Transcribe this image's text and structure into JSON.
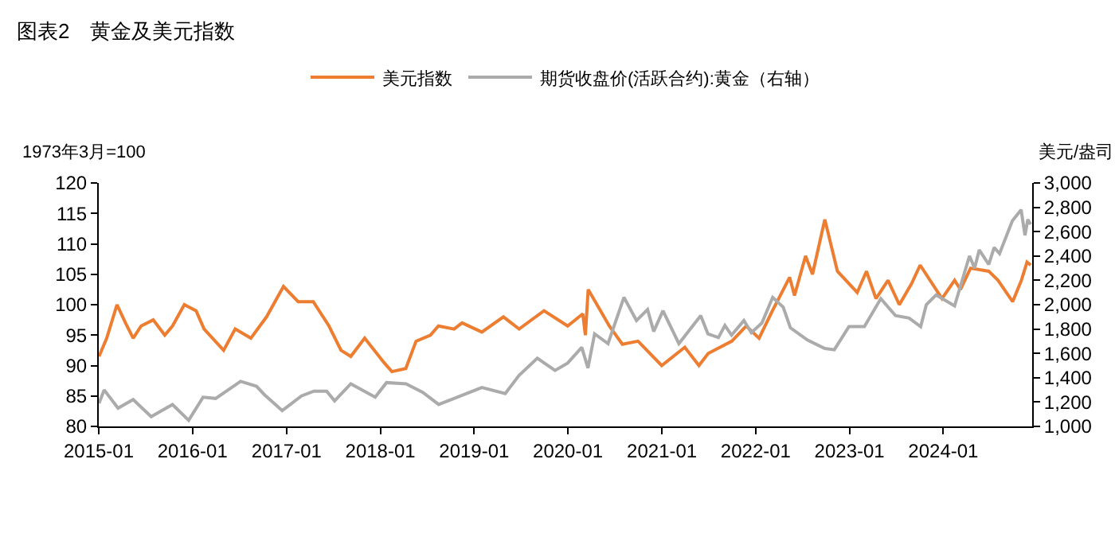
{
  "chart_data": {
    "type": "line",
    "title": "图表2　黄金及美元指数",
    "ylabel": "1973年3月=100",
    "y2label": "美元/盎司",
    "legend": "top",
    "marker": "none",
    "line_style": "solid",
    "xlim": [
      "2015-01-01",
      "2024-12-12"
    ],
    "xticks": [
      "2015-01",
      "2016-01",
      "2017-01",
      "2018-01",
      "2019-01",
      "2020-01",
      "2021-01",
      "2022-01",
      "2023-01",
      "2024-01"
    ],
    "ylim": [
      80,
      120
    ],
    "yticks": [
      80,
      85,
      90,
      95,
      100,
      105,
      110,
      115,
      120
    ],
    "y2lim": [
      1000,
      3000
    ],
    "y2ticks": [
      {
        "value": 1000,
        "label": "1,000"
      },
      {
        "value": 1200,
        "label": "1,200"
      },
      {
        "value": 1400,
        "label": "1,400"
      },
      {
        "value": 1600,
        "label": "1,600"
      },
      {
        "value": 1800,
        "label": "1,800"
      },
      {
        "value": 2000,
        "label": "2,000"
      },
      {
        "value": 2200,
        "label": "2,200"
      },
      {
        "value": 2400,
        "label": "2,400"
      },
      {
        "value": 2600,
        "label": "2,600"
      },
      {
        "value": 2800,
        "label": "2,800"
      },
      {
        "value": 3000,
        "label": "3,000"
      }
    ],
    "series": [
      {
        "name": "美元指数",
        "color": "#ed7d31",
        "x": [
          "2015-01-02",
          "2015-02-01",
          "2015-03-13",
          "2015-04-15",
          "2015-05-15",
          "2015-06-15",
          "2015-08-01",
          "2015-09-15",
          "2015-10-15",
          "2015-11-30",
          "2016-01-15",
          "2016-02-15",
          "2016-05-01",
          "2016-06-15",
          "2016-08-15",
          "2016-10-15",
          "2016-12-20",
          "2017-02-15",
          "2017-04-15",
          "2017-06-15",
          "2017-08-01",
          "2017-09-08",
          "2017-11-01",
          "2018-01-15",
          "2018-02-15",
          "2018-04-10",
          "2018-05-20",
          "2018-07-15",
          "2018-08-15",
          "2018-10-15",
          "2018-11-15",
          "2019-01-31",
          "2019-04-25",
          "2019-06-25",
          "2019-09-30",
          "2019-12-31",
          "2020-02-28",
          "2020-03-09",
          "2020-03-20",
          "2020-04-30",
          "2020-06-10",
          "2020-07-31",
          "2020-09-30",
          "2020-12-31",
          "2021-03-31",
          "2021-05-25",
          "2021-06-30",
          "2021-09-30",
          "2021-11-25",
          "2022-01-14",
          "2022-03-07",
          "2022-05-13",
          "2022-06-01",
          "2022-07-14",
          "2022-08-10",
          "2022-09-27",
          "2022-11-15",
          "2023-01-31",
          "2023-03-08",
          "2023-04-14",
          "2023-05-31",
          "2023-07-14",
          "2023-08-31",
          "2023-10-03",
          "2023-12-27",
          "2024-02-14",
          "2024-03-08",
          "2024-04-16",
          "2024-06-26",
          "2024-08-01",
          "2024-09-27",
          "2024-10-31",
          "2024-11-22",
          "2024-12-06"
        ],
        "values": [
          91.5,
          94.5,
          100.0,
          97.0,
          94.5,
          96.5,
          97.5,
          95.0,
          96.5,
          100.0,
          99.0,
          96.0,
          92.5,
          96.0,
          94.5,
          98.0,
          103.0,
          100.5,
          100.5,
          96.5,
          92.5,
          91.5,
          94.5,
          90.5,
          89.0,
          89.5,
          94.0,
          95.0,
          96.5,
          96.0,
          97.0,
          95.5,
          98.0,
          96.0,
          99.0,
          96.5,
          98.5,
          95.0,
          102.5,
          99.5,
          96.5,
          93.5,
          94.0,
          90.0,
          93.0,
          90.0,
          92.0,
          94.0,
          96.5,
          94.5,
          99.0,
          104.5,
          101.5,
          108.0,
          105.0,
          114.0,
          105.5,
          102.0,
          105.5,
          101.0,
          104.0,
          100.0,
          103.5,
          106.5,
          101.0,
          104.0,
          102.5,
          106.0,
          105.5,
          104.0,
          100.5,
          104.0,
          107.0,
          106.5
        ]
      },
      {
        "name": "期货收盘价(活跃合约):黄金（右轴）",
        "color": "#ababab",
        "axis": "y2",
        "x": [
          "2015-01-02",
          "2015-01-22",
          "2015-03-17",
          "2015-05-15",
          "2015-07-24",
          "2015-10-15",
          "2015-12-17",
          "2016-02-11",
          "2016-03-31",
          "2016-07-06",
          "2016-09-06",
          "2016-10-07",
          "2016-12-15",
          "2017-02-28",
          "2017-04-17",
          "2017-06-06",
          "2017-07-07",
          "2017-09-08",
          "2017-12-12",
          "2018-01-25",
          "2018-04-11",
          "2018-06-15",
          "2018-08-16",
          "2018-10-15",
          "2019-01-31",
          "2019-05-02",
          "2019-06-25",
          "2019-09-04",
          "2019-11-12",
          "2019-12-31",
          "2020-02-24",
          "2020-03-19",
          "2020-04-14",
          "2020-06-05",
          "2020-08-06",
          "2020-09-24",
          "2020-11-06",
          "2020-11-30",
          "2021-01-05",
          "2021-03-08",
          "2021-06-01",
          "2021-06-29",
          "2021-08-09",
          "2021-09-03",
          "2021-09-29",
          "2021-11-16",
          "2021-12-15",
          "2022-01-25",
          "2022-03-08",
          "2022-04-18",
          "2022-05-16",
          "2022-07-21",
          "2022-09-27",
          "2022-11-03",
          "2022-12-30",
          "2023-02-28",
          "2023-05-03",
          "2023-06-29",
          "2023-08-21",
          "2023-10-05",
          "2023-10-27",
          "2023-12-04",
          "2024-02-14",
          "2024-04-12",
          "2024-05-02",
          "2024-05-20",
          "2024-06-26",
          "2024-07-17",
          "2024-08-07",
          "2024-09-26",
          "2024-10-30",
          "2024-11-14",
          "2024-11-25",
          "2024-12-06"
        ],
        "values": [
          1190,
          1300,
          1150,
          1220,
          1080,
          1180,
          1050,
          1240,
          1230,
          1370,
          1330,
          1260,
          1130,
          1250,
          1290,
          1290,
          1210,
          1350,
          1240,
          1360,
          1350,
          1280,
          1180,
          1230,
          1320,
          1270,
          1420,
          1560,
          1460,
          1520,
          1650,
          1480,
          1760,
          1680,
          2060,
          1870,
          1960,
          1780,
          1950,
          1680,
          1910,
          1760,
          1730,
          1830,
          1750,
          1870,
          1770,
          1850,
          2060,
          1980,
          1810,
          1710,
          1640,
          1630,
          1820,
          1820,
          2050,
          1910,
          1890,
          1820,
          2000,
          2080,
          1990,
          2400,
          2300,
          2450,
          2330,
          2470,
          2420,
          2690,
          2780,
          2570,
          2700,
          2660
        ]
      }
    ]
  }
}
